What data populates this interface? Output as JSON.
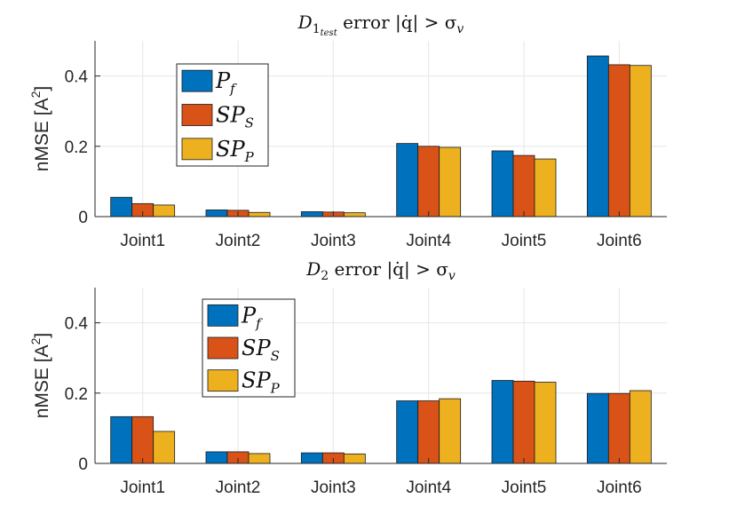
{
  "chart_data": [
    {
      "type": "bar",
      "title": {
        "main": "D",
        "main_sub": "1",
        "main_subsub": "test",
        "rest": " error |q̇| > σ",
        "rest_sub": "v"
      },
      "ylabel": "nMSE [A",
      "ylabel_sup": "2",
      "ylabel_end": "]",
      "categories": [
        "Joint1",
        "Joint2",
        "Joint3",
        "Joint4",
        "Joint5",
        "Joint6"
      ],
      "ylim": [
        0,
        0.5
      ],
      "yticks": [
        0,
        0.2,
        0.4
      ],
      "ytick_labels": [
        "0",
        "0.2",
        "0.4"
      ],
      "grid": true,
      "legend_position": "upper-left",
      "series": [
        {
          "name": "P",
          "name_sub": "f",
          "color": "#0072BD",
          "values": [
            0.055,
            0.019,
            0.014,
            0.208,
            0.187,
            0.457
          ]
        },
        {
          "name": "SP",
          "name_sub": "S",
          "color": "#D95319",
          "values": [
            0.037,
            0.018,
            0.013,
            0.2,
            0.174,
            0.432
          ]
        },
        {
          "name": "SP",
          "name_sub": "P",
          "color": "#EDB120",
          "values": [
            0.033,
            0.012,
            0.011,
            0.197,
            0.164,
            0.43
          ]
        }
      ]
    },
    {
      "type": "bar",
      "title": {
        "main": "D",
        "main_sub": "2",
        "main_subsub": "",
        "rest": " error |q̇| > σ",
        "rest_sub": "v"
      },
      "ylabel": "nMSE [A",
      "ylabel_sup": "2",
      "ylabel_end": "]",
      "categories": [
        "Joint1",
        "Joint2",
        "Joint3",
        "Joint4",
        "Joint5",
        "Joint6"
      ],
      "ylim": [
        0,
        0.5
      ],
      "yticks": [
        0,
        0.2,
        0.4
      ],
      "ytick_labels": [
        "0",
        "0.2",
        "0.4"
      ],
      "grid": true,
      "legend_position": "upper-left",
      "series": [
        {
          "name": "P",
          "name_sub": "f",
          "color": "#0072BD",
          "values": [
            0.133,
            0.033,
            0.03,
            0.178,
            0.236,
            0.199
          ]
        },
        {
          "name": "SP",
          "name_sub": "S",
          "color": "#D95319",
          "values": [
            0.133,
            0.033,
            0.03,
            0.178,
            0.234,
            0.199
          ]
        },
        {
          "name": "SP",
          "name_sub": "P",
          "color": "#EDB120",
          "values": [
            0.091,
            0.028,
            0.027,
            0.184,
            0.231,
            0.207
          ]
        }
      ]
    }
  ]
}
